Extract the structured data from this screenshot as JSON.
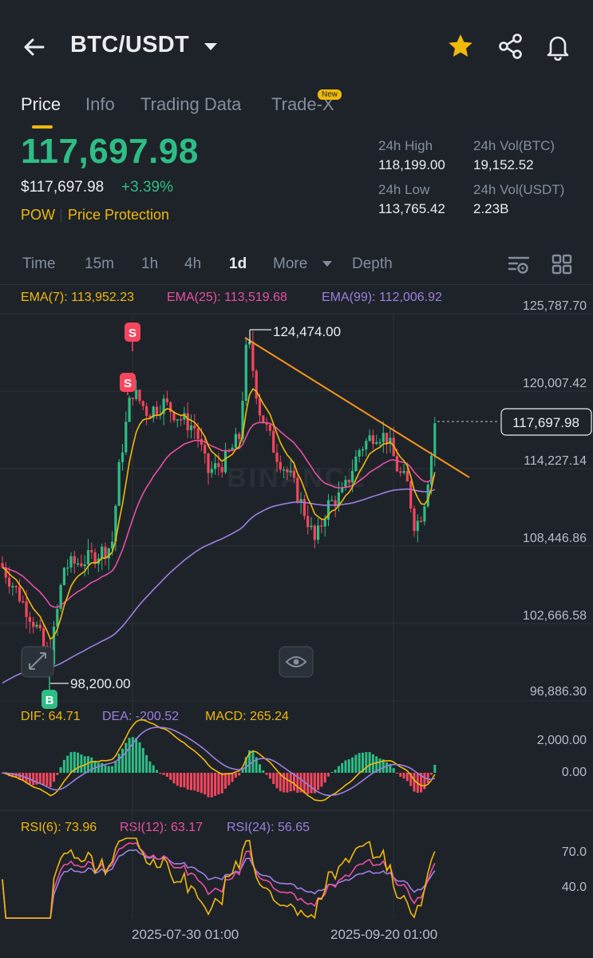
{
  "header": {
    "pair": "BTC/USDT",
    "icons": [
      "back-arrow-icon",
      "caret-down-icon",
      "star-icon",
      "share-icon",
      "bell-icon"
    ],
    "star_color": "#f0b90b"
  },
  "tabs": [
    {
      "label": "Price",
      "active": true
    },
    {
      "label": "Info",
      "active": false
    },
    {
      "label": "Trading Data",
      "active": false
    },
    {
      "label": "Trade-X",
      "active": false,
      "badge": "New"
    }
  ],
  "price": {
    "last": "117,697.98",
    "usd": "$117,697.98",
    "change": "+3.39%",
    "tags": [
      "POW",
      "Price Protection"
    ]
  },
  "stats": {
    "high_label": "24h High",
    "high": "118,199.00",
    "low_label": "24h Low",
    "low": "113,765.42",
    "vol_btc_label": "24h Vol(BTC)",
    "vol_btc": "19,152.52",
    "vol_usdt_label": "24h Vol(USDT)",
    "vol_usdt": "2.23B"
  },
  "intervals": {
    "items": [
      "Time",
      "15m",
      "1h",
      "4h",
      "1d",
      "More",
      "Depth"
    ],
    "active": "1d"
  },
  "indicators": {
    "ema7": "EMA(7): 113,952.23",
    "ema25": "EMA(25): 113,519.68",
    "ema99": "EMA(99): 112,006.92",
    "dif": "DIF: 64.71",
    "dea": "DEA: -200.52",
    "macd": "MACD: 265.24",
    "rsi6": "RSI(6): 73.96",
    "rsi12": "RSI(12): 63.17",
    "rsi24": "RSI(24): 56.65"
  },
  "colors": {
    "up": "#2ebd85",
    "down": "#f6465d",
    "ema7": "#f0b90b",
    "ema25": "#e84fa4",
    "ema99": "#9c7fe0",
    "trendline": "#f7931a"
  },
  "chart_data": {
    "type": "candlestick",
    "price_axis": [
      "125,787.70",
      "120,007.42",
      "114,227.14",
      "108,446.86",
      "102,666.58",
      "96,886.30"
    ],
    "price_range": [
      96886.3,
      125787.7
    ],
    "current_price_label": "117,697.98",
    "high_marker": "124,474.00",
    "low_marker": "98,200.00",
    "markers": [
      "S",
      "S",
      "B"
    ],
    "macd_axis": [
      "2,000.00",
      "0.00"
    ],
    "rsi_axis": [
      "70.0",
      "40.0"
    ],
    "x_labels": [
      "2025-07-30 01:00",
      "2025-09-20 01:00"
    ],
    "watermark": "BINANCE"
  }
}
